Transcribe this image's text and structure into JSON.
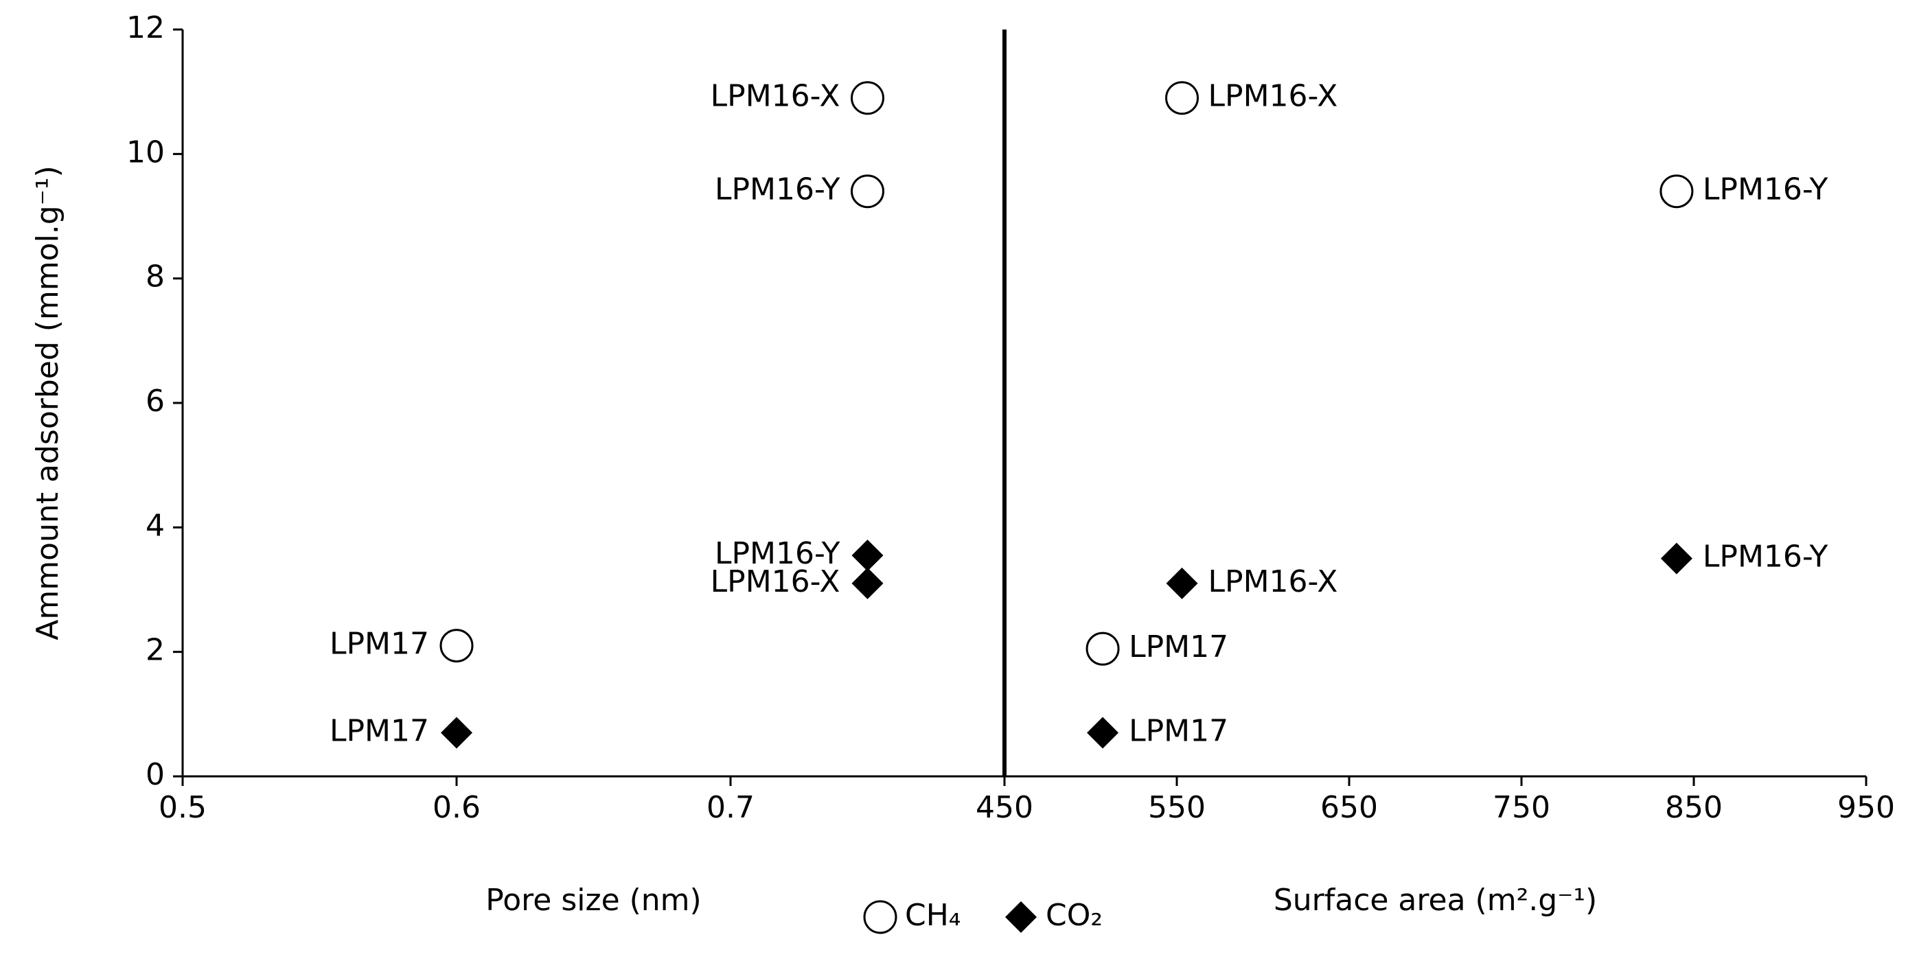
{
  "chart_data": [
    {
      "type": "scatter",
      "ylabel": "Ammount adsorbed (mmol.g⁻¹)",
      "xlabel": "Pore size (nm)",
      "xlim": [
        0.5,
        0.8
      ],
      "xticks": [
        0.5,
        0.6,
        0.7
      ],
      "ylim": [
        0,
        12
      ],
      "yticks": [
        0,
        2,
        4,
        6,
        8,
        10,
        12
      ],
      "label_position": "left",
      "series": [
        {
          "name": "CH₄",
          "marker": "circle-open",
          "color": "#000000",
          "x": [
            0.75,
            0.75,
            0.6
          ],
          "values": [
            10.9,
            9.4,
            2.1
          ],
          "labels": [
            "LPM16-X",
            "LPM16-Y",
            "LPM17"
          ]
        },
        {
          "name": "CO₂",
          "marker": "diamond",
          "color": "#000000",
          "x": [
            0.75,
            0.75,
            0.6
          ],
          "values": [
            3.1,
            3.55,
            0.7
          ],
          "labels": [
            "LPM16-X",
            "LPM16-Y",
            "LPM17"
          ]
        }
      ]
    },
    {
      "type": "scatter",
      "xlabel": "Surface area (m².g⁻¹)",
      "xlim": [
        450,
        950
      ],
      "xticks": [
        450,
        550,
        650,
        750,
        850,
        950
      ],
      "ylim": [
        0,
        12
      ],
      "label_position": "right",
      "series": [
        {
          "marker": "circle-open",
          "color": "#000000",
          "x": [
            553,
            840,
            507
          ],
          "values": [
            10.9,
            9.4,
            2.05
          ],
          "labels": [
            "LPM16-X",
            "LPM16-Y",
            "LPM17"
          ]
        },
        {
          "marker": "diamond",
          "color": "#000000",
          "x": [
            553,
            840,
            507
          ],
          "values": [
            3.1,
            3.5,
            0.7
          ],
          "labels": [
            "LPM16-X",
            "LPM16-Y",
            "LPM17"
          ]
        }
      ]
    }
  ]
}
